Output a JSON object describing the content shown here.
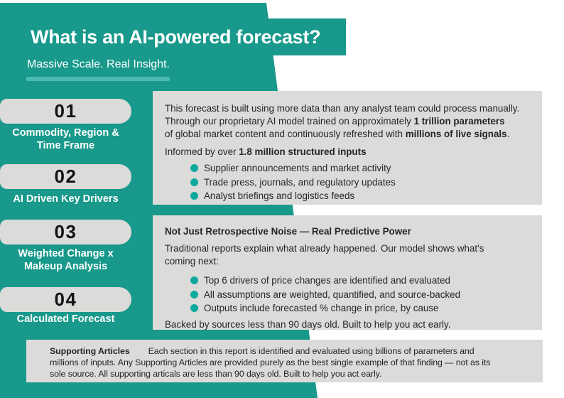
{
  "colors": {
    "teal": "#18998B",
    "teal_light_bar": "#4BBCAF",
    "bullet_teal": "#0FA99B",
    "panel_gray": "#DBDBD9",
    "ink": "#272425"
  },
  "header": {
    "title": "What is an AI-powered forecast?",
    "subtitle": "Massive Scale. Real Insight."
  },
  "sidebar": {
    "steps": [
      {
        "number": "01",
        "label": "Commodity, Region &\nTime Frame"
      },
      {
        "number": "02",
        "label": "AI Driven Key Drivers"
      },
      {
        "number": "03",
        "label": "Weighted Change x\nMakeup Analysis"
      },
      {
        "number": "04",
        "label": "Calculated Forecast"
      }
    ]
  },
  "box1": {
    "para": [
      [
        {
          "t": "This forecast is built using more data than any analyst team could process manually."
        }
      ],
      [
        {
          "t": "Through our proprietary AI model trained on approximately "
        },
        {
          "t": "1 trillion parameters",
          "b": true
        }
      ],
      [
        {
          "t": "of global market content and continuously refreshed with "
        },
        {
          "t": "millions of live signals",
          "b": true
        },
        {
          "t": "."
        }
      ]
    ],
    "informed": [
      {
        "t": "Informed by over "
      },
      {
        "t": "1.8 million structured inputs",
        "b": true
      }
    ],
    "bullets": [
      "Supplier announcements and market activity",
      "Trade press, journals, and regulatory updates",
      "Analyst briefings and logistics feeds"
    ]
  },
  "box2": {
    "heading": "Not Just Retrospective Noise — Real Predictive Power",
    "para": "Traditional reports explain what already happened. Our model shows what's\ncoming next:",
    "bullets": [
      "Top 6 drivers of price changes are identified and evaluated",
      "All assumptions are weighted, quantified, and source-backed",
      "Outputs include forecasted % change in price, by cause"
    ],
    "footer": "Backed by sources less than 90 days old. Built to help you act early."
  },
  "support": {
    "label": "Supporting Articles",
    "line1": "Each section in this report is identified and evaluated using billions of parameters and",
    "line2": "millions of inputs. Any Supporting Articles are provided purely as the best single example of that finding — not as its",
    "line3": "sole source. All supporting articals are less than 90 days old. Built to help you act early."
  }
}
